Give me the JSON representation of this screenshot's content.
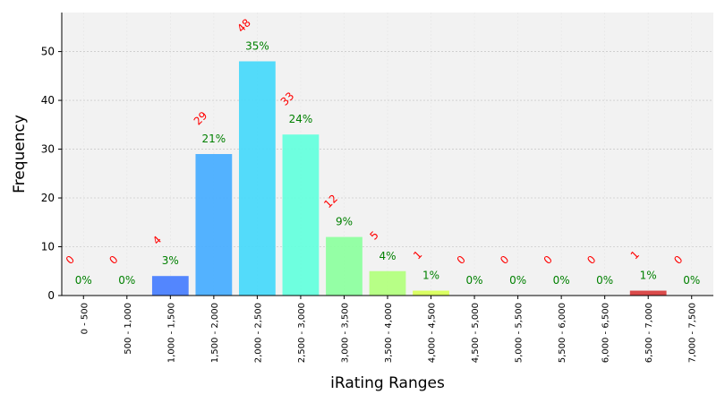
{
  "chart_data": {
    "type": "bar",
    "xlabel": "iRating Ranges",
    "ylabel": "Frequency",
    "categories": [
      "0 - 500",
      "500 - 1,000",
      "1,000 - 1,500",
      "1,500 - 2,000",
      "2,000 - 2,500",
      "2,500 - 3,000",
      "3,000 - 3,500",
      "3,500 - 4,000",
      "4,000 - 4,500",
      "4,500 - 5,000",
      "5,000 - 5,500",
      "5,500 - 6,000",
      "6,000 - 6,500",
      "6,500 - 7,000",
      "7,000 - 7,500"
    ],
    "values": [
      0,
      0,
      4,
      29,
      48,
      33,
      12,
      5,
      1,
      0,
      0,
      0,
      0,
      1,
      0
    ],
    "percent_labels": [
      "0%",
      "0%",
      "3%",
      "21%",
      "35%",
      "24%",
      "9%",
      "4%",
      "1%",
      "0%",
      "0%",
      "0%",
      "0%",
      "1%",
      "0%"
    ],
    "count_labels": [
      "0",
      "0",
      "4",
      "29",
      "48",
      "33",
      "12",
      "5",
      "1",
      "0",
      "0",
      "0",
      "0",
      "1",
      "0"
    ],
    "bar_colors": [
      "#2e43f6",
      "#3b5cfb",
      "#4a7ffe",
      "#4aaeff",
      "#4ad9fa",
      "#66ffdd",
      "#8effa0",
      "#b3ff80",
      "#d8ff5a",
      "#ffe44a",
      "#ffc040",
      "#ff9a36",
      "#ff702e",
      "#d84040",
      "#a82020"
    ],
    "count_label_color": "#ff0000",
    "percent_label_color": "#008000",
    "plot_background": "#f2f2f2",
    "ylim": [
      0,
      58
    ],
    "yticks": [
      0,
      10,
      20,
      30,
      40,
      50
    ],
    "grid": true,
    "legend": "none"
  }
}
